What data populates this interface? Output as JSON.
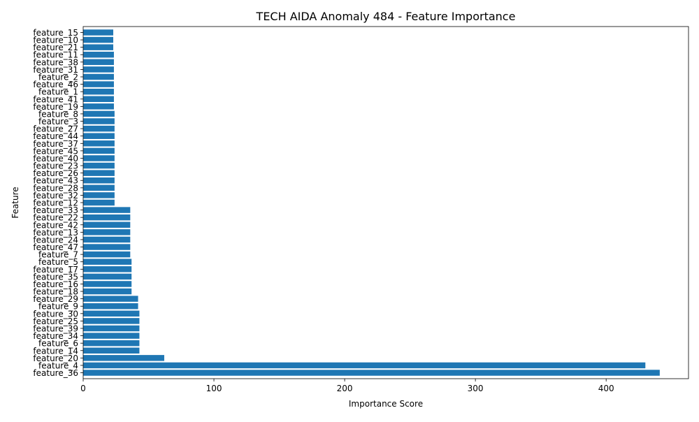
{
  "chart_data": {
    "type": "bar",
    "orientation": "horizontal",
    "title": "TECH AIDA Anomaly 484 - Feature Importance",
    "xlabel": "Importance Score",
    "ylabel": "Feature",
    "xlim": [
      0,
      463
    ],
    "xticks": [
      0,
      100,
      200,
      300,
      400
    ],
    "grid": false,
    "bar_color": "#1f77b4",
    "categories": [
      "feature_36",
      "feature_4",
      "feature_20",
      "feature_14",
      "feature_6",
      "feature_34",
      "feature_39",
      "feature_25",
      "feature_30",
      "feature_9",
      "feature_29",
      "feature_18",
      "feature_16",
      "feature_35",
      "feature_17",
      "feature_5",
      "feature_7",
      "feature_47",
      "feature_24",
      "feature_13",
      "feature_42",
      "feature_22",
      "feature_33",
      "feature_12",
      "feature_32",
      "feature_28",
      "feature_43",
      "feature_26",
      "feature_23",
      "feature_40",
      "feature_45",
      "feature_37",
      "feature_44",
      "feature_27",
      "feature_3",
      "feature_8",
      "feature_19",
      "feature_41",
      "feature_1",
      "feature_46",
      "feature_2",
      "feature_31",
      "feature_38",
      "feature_11",
      "feature_21",
      "feature_10",
      "feature_15"
    ],
    "values": [
      441,
      430,
      62,
      43,
      43,
      43,
      43,
      43,
      43,
      42,
      42,
      37,
      37,
      37,
      37,
      37,
      36,
      36,
      36,
      36,
      36,
      36,
      36,
      24,
      24,
      24,
      24,
      24,
      24,
      24,
      24,
      24,
      24,
      24,
      24,
      24,
      23.5,
      23.5,
      23.5,
      23.5,
      23.5,
      23.5,
      23.5,
      23.5,
      23,
      23,
      23
    ]
  }
}
